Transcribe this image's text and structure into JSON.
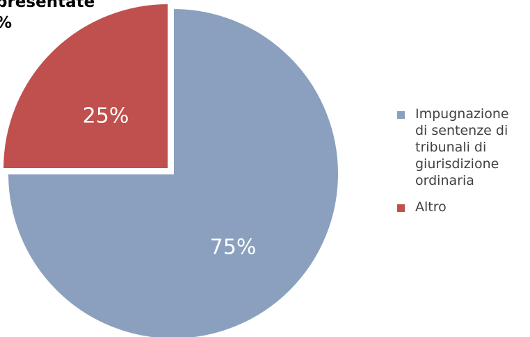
{
  "chart_data": {
    "type": "pie",
    "title": "presentate\n%",
    "slices": [
      {
        "label": "Impugnazione\ndi sentenze di\ntribunali di\ngiurisdizione\nordinaria",
        "value": 75,
        "display": "75%",
        "color": "#8aa0be"
      },
      {
        "label": "Altro",
        "value": 25,
        "display": "25%",
        "color": "#c0504d"
      }
    ],
    "legend_position": "right",
    "exploded": true
  }
}
